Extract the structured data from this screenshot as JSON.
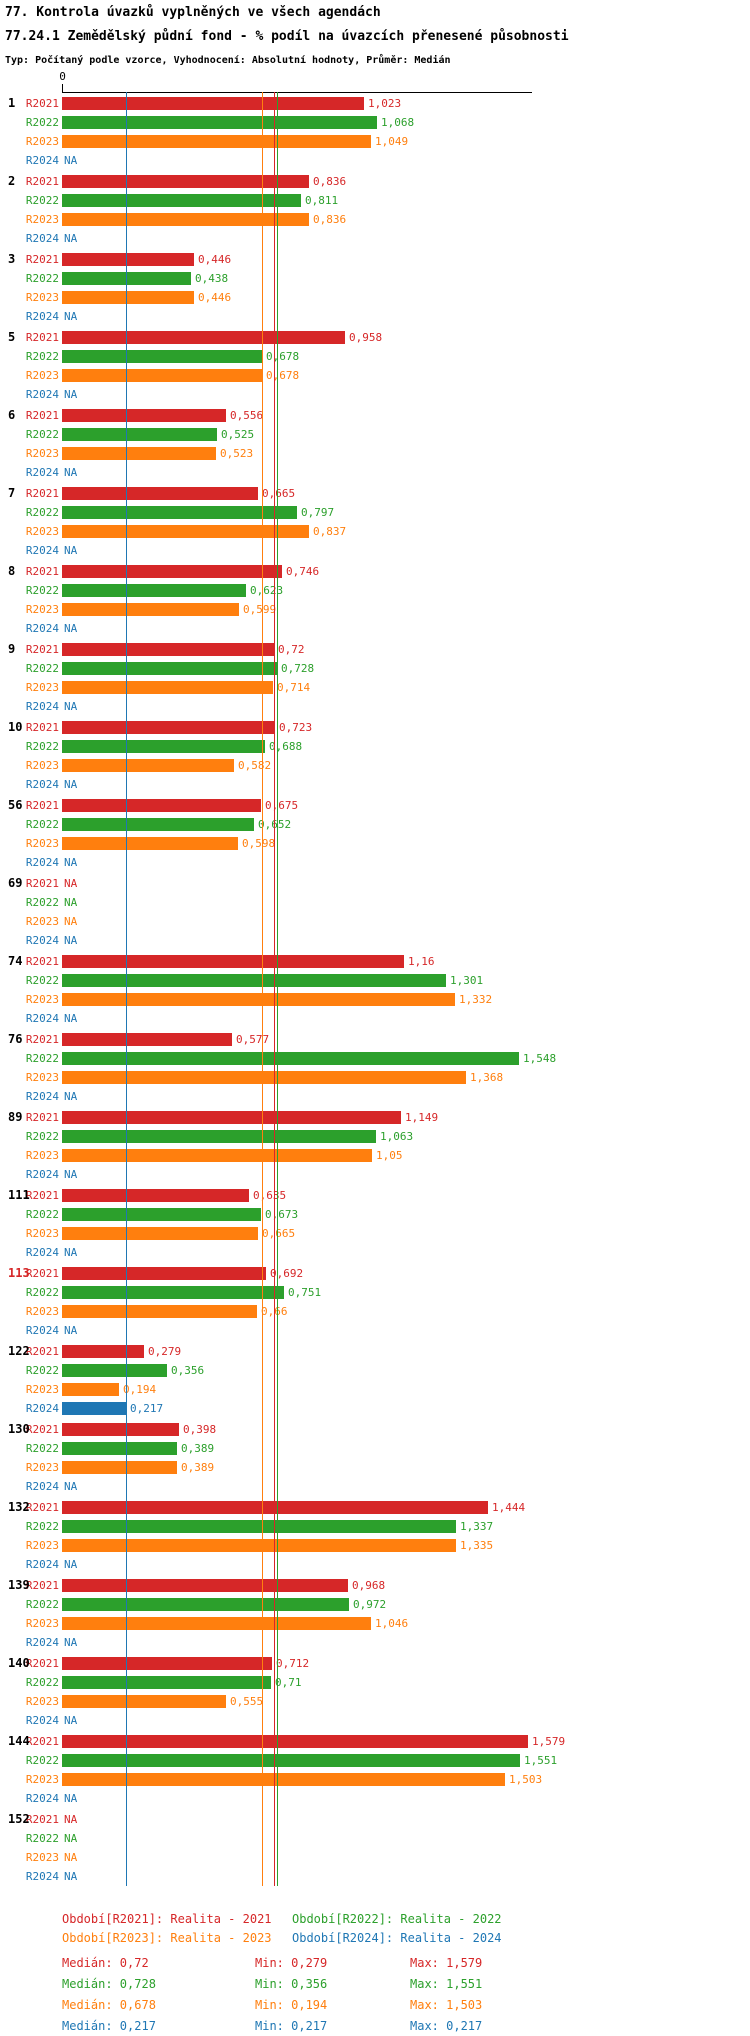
{
  "header": {
    "title1": "77. Kontrola úvazků vyplněných ve všech agendách",
    "title2": "77.24.1 Zemědělský půdní fond - % podíl na úvazcích přenesené působnosti",
    "subtitle": "Typ: Počítaný podle vzorce, Vyhodnocení: Absolutní hodnoty, Průměr: Medián"
  },
  "axis": {
    "origin_label": "0"
  },
  "legend": [
    {
      "series": "R2021",
      "label": "Období[R2021]: Realita - 2021"
    },
    {
      "series": "R2022",
      "label": "Období[R2022]: Realita - 2022"
    },
    {
      "series": "R2023",
      "label": "Období[R2023]: Realita - 2023"
    },
    {
      "series": "R2024",
      "label": "Období[R2024]: Realita - 2024"
    }
  ],
  "stats": [
    {
      "series": "R2021",
      "median": "Medián: 0,72",
      "min": "Min: 0,279",
      "max": "Max: 1,579"
    },
    {
      "series": "R2022",
      "median": "Medián: 0,728",
      "min": "Min: 0,356",
      "max": "Max: 1,551"
    },
    {
      "series": "R2023",
      "median": "Medián: 0,678",
      "min": "Min: 0,194",
      "max": "Max: 1,503"
    },
    {
      "series": "R2024",
      "median": "Medián: 0,217",
      "min": "Min: 0,217",
      "max": "Max: 0,217"
    }
  ],
  "chart_data": {
    "type": "bar",
    "orientation": "horizontal",
    "title": "77.24.1 Zemědělský půdní fond - % podíl na úvazcích přenesené působnosti",
    "xlabel": "",
    "ylabel": "",
    "xlim": [
      0,
      1.6
    ],
    "grid": false,
    "legend_position": "bottom",
    "na_text": "NA",
    "series": [
      "R2021",
      "R2022",
      "R2023",
      "R2024"
    ],
    "colors": {
      "R2021": "#d62728",
      "R2022": "#2ca02c",
      "R2023": "#ff7f0e",
      "R2024": "#1f77b4"
    },
    "groups": [
      {
        "id": "1",
        "values": [
          "1,023",
          "1,068",
          "1,049",
          "NA"
        ]
      },
      {
        "id": "2",
        "values": [
          "0,836",
          "0,811",
          "0,836",
          "NA"
        ]
      },
      {
        "id": "3",
        "values": [
          "0,446",
          "0,438",
          "0,446",
          "NA"
        ]
      },
      {
        "id": "5",
        "values": [
          "0,958",
          "0,678",
          "0,678",
          "NA"
        ]
      },
      {
        "id": "6",
        "values": [
          "0,556",
          "0,525",
          "0,523",
          "NA"
        ]
      },
      {
        "id": "7",
        "values": [
          "0,665",
          "0,797",
          "0,837",
          "NA"
        ]
      },
      {
        "id": "8",
        "values": [
          "0,746",
          "0,623",
          "0,599",
          "NA"
        ]
      },
      {
        "id": "9",
        "values": [
          "0,72",
          "0,728",
          "0,714",
          "NA"
        ]
      },
      {
        "id": "10",
        "values": [
          "0,723",
          "0,688",
          "0,582",
          "NA"
        ]
      },
      {
        "id": "56",
        "values": [
          "0,675",
          "0,652",
          "0,598",
          "NA"
        ]
      },
      {
        "id": "69",
        "values": [
          "NA",
          "NA",
          "NA",
          "NA"
        ]
      },
      {
        "id": "74",
        "values": [
          "1,16",
          "1,301",
          "1,332",
          "NA"
        ]
      },
      {
        "id": "76",
        "values": [
          "0,577",
          "1,548",
          "1,368",
          "NA"
        ]
      },
      {
        "id": "89",
        "values": [
          "1,149",
          "1,063",
          "1,05",
          "NA"
        ]
      },
      {
        "id": "111",
        "values": [
          "0,635",
          "0,673",
          "0,665",
          "NA"
        ]
      },
      {
        "id": "113",
        "highlight": true,
        "values": [
          "0,692",
          "0,751",
          "0,66",
          "NA"
        ]
      },
      {
        "id": "122",
        "values": [
          "0,279",
          "0,356",
          "0,194",
          "0,217"
        ]
      },
      {
        "id": "130",
        "values": [
          "0,398",
          "0,389",
          "0,389",
          "NA"
        ]
      },
      {
        "id": "132",
        "values": [
          "1,444",
          "1,337",
          "1,335",
          "NA"
        ]
      },
      {
        "id": "139",
        "values": [
          "0,968",
          "0,972",
          "1,046",
          "NA"
        ]
      },
      {
        "id": "140",
        "values": [
          "0,712",
          "0,71",
          "0,555",
          "NA"
        ]
      },
      {
        "id": "144",
        "values": [
          "1,579",
          "1,551",
          "1,503",
          "NA"
        ]
      },
      {
        "id": "152",
        "values": [
          "NA",
          "NA",
          "NA",
          "NA"
        ]
      }
    ],
    "median_lines": [
      {
        "series": "R2021",
        "value": 0.72
      },
      {
        "series": "R2022",
        "value": 0.728
      },
      {
        "series": "R2023",
        "value": 0.678
      },
      {
        "series": "R2024",
        "value": 0.217
      }
    ]
  }
}
